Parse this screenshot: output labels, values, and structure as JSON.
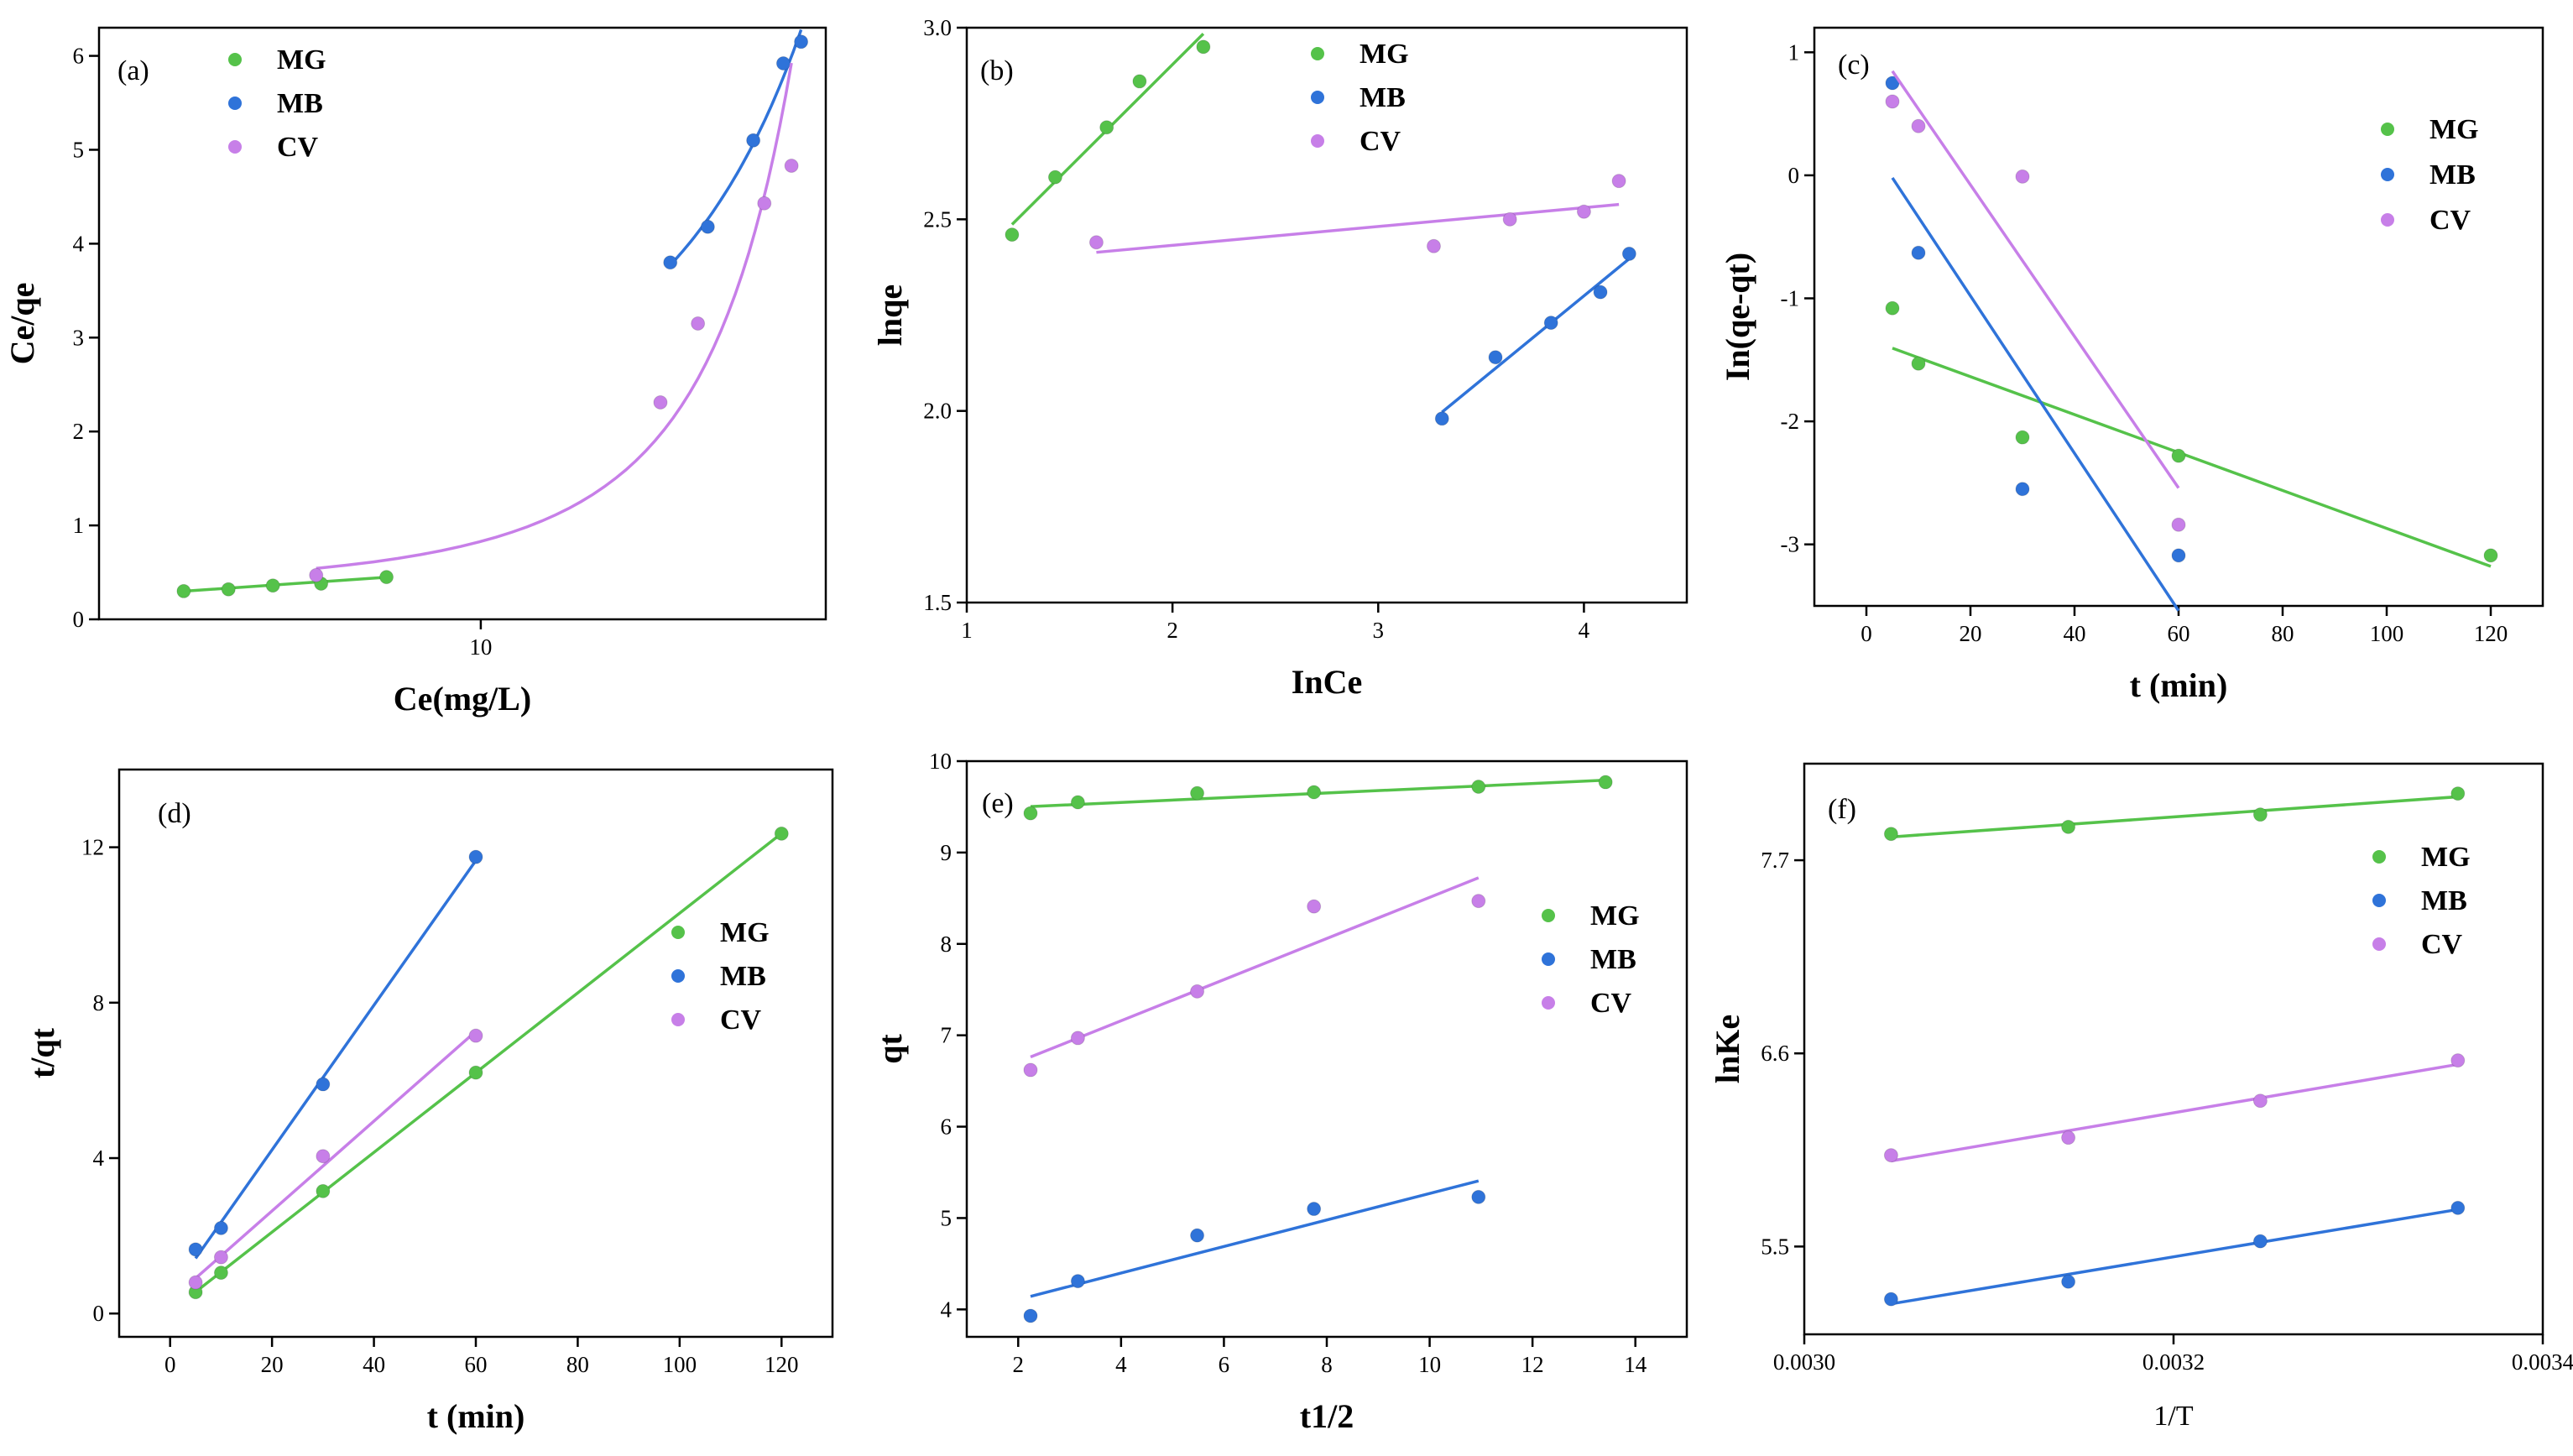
{
  "colors": {
    "MG": "#55c24a",
    "MB": "#2f73d9",
    "CV": "#c77fe8"
  },
  "chart_data": [
    {
      "id": "a",
      "type": "scatter",
      "tag": "(a)",
      "xlabel": "Ce(mg/L)",
      "ylabel": "Ce/qe",
      "xscale": "log",
      "xlim": [
        2.5,
        35
      ],
      "ylim": [
        0,
        6.3
      ],
      "xticks": [
        10
      ],
      "xtick_labels": [
        "10"
      ],
      "yticks": [
        0,
        1,
        2,
        3,
        4,
        5,
        6
      ],
      "ytick_labels": [
        "0",
        "1",
        "2",
        "3",
        "4",
        "5",
        "6"
      ],
      "legend": [
        "MG",
        "MB",
        "CV"
      ],
      "legend_position": "top-left",
      "series": [
        {
          "name": "MG",
          "x": [
            3.4,
            4.0,
            4.7,
            5.6,
            7.1
          ],
          "y": [
            0.3,
            0.32,
            0.36,
            0.38,
            0.45
          ],
          "fit": "linear"
        },
        {
          "name": "MB",
          "x": [
            19.9,
            22.8,
            26.9,
            30.0,
            32.0
          ],
          "y": [
            3.8,
            4.18,
            5.1,
            5.92,
            6.15
          ],
          "fit": "curve"
        },
        {
          "name": "CV",
          "x": [
            5.5,
            19.2,
            22.0,
            28.0,
            30.9
          ],
          "y": [
            0.47,
            2.31,
            3.15,
            4.43,
            4.83
          ],
          "fit": "curve"
        }
      ]
    },
    {
      "id": "b",
      "type": "scatter",
      "tag": "(b)",
      "xlabel": "InCe",
      "ylabel": "lnqe",
      "xlim": [
        1,
        4.5
      ],
      "ylim": [
        1.5,
        3.0
      ],
      "xticks": [
        1,
        2,
        3,
        4
      ],
      "xtick_labels": [
        "1",
        "2",
        "3",
        "4"
      ],
      "yticks": [
        1.5,
        2.0,
        2.5,
        3.0
      ],
      "ytick_labels": [
        "1.5",
        "2.0",
        "2.5",
        "3.0"
      ],
      "legend": [
        "MG",
        "MB",
        "CV"
      ],
      "legend_position": "top-right",
      "series": [
        {
          "name": "MG",
          "x": [
            1.22,
            1.43,
            1.68,
            1.84,
            2.15
          ],
          "y": [
            2.46,
            2.61,
            2.74,
            2.86,
            2.95
          ],
          "fit": "linear"
        },
        {
          "name": "MB",
          "x": [
            3.31,
            3.57,
            3.84,
            4.08,
            4.22
          ],
          "y": [
            1.98,
            2.14,
            2.23,
            2.31,
            2.41
          ],
          "fit": "linear"
        },
        {
          "name": "CV",
          "x": [
            1.63,
            3.27,
            3.64,
            4.0,
            4.17
          ],
          "y": [
            2.44,
            2.43,
            2.5,
            2.52,
            2.6
          ],
          "fit": "linear"
        }
      ]
    },
    {
      "id": "c",
      "type": "scatter",
      "tag": "(c)",
      "xlabel": "t (min)",
      "ylabel": "In(qe-qt)",
      "xlim": [
        -10,
        130
      ],
      "ylim": [
        -3.5,
        1.2
      ],
      "xticks": [
        0,
        20,
        40,
        60,
        80,
        100,
        120
      ],
      "xtick_labels": [
        "0",
        "20",
        "40",
        "60",
        "80",
        "100",
        "120"
      ],
      "yticks": [
        -3,
        -2,
        -1,
        0,
        1
      ],
      "ytick_labels": [
        "-3",
        "-2",
        "-1",
        "0",
        "1"
      ],
      "legend": [
        "MG",
        "MB",
        "CV"
      ],
      "legend_position": "top-right",
      "series": [
        {
          "name": "MG",
          "x": [
            5,
            10,
            30,
            60,
            120
          ],
          "y": [
            -1.08,
            -1.53,
            -2.13,
            -2.28,
            -3.09
          ],
          "fit": "linear",
          "fit_x": [
            5,
            120
          ]
        },
        {
          "name": "MB",
          "x": [
            5,
            10,
            30,
            60
          ],
          "y": [
            0.75,
            -0.63,
            -2.55,
            -3.09
          ],
          "fit": "linear",
          "fit_x": [
            5,
            60
          ]
        },
        {
          "name": "CV",
          "x": [
            5,
            10,
            30,
            60
          ],
          "y": [
            0.6,
            0.4,
            -0.01,
            -2.84
          ],
          "fit": "linear",
          "fit_x": [
            5,
            60
          ]
        }
      ]
    },
    {
      "id": "d",
      "type": "scatter",
      "tag": "(d)",
      "xlabel": "t (min)",
      "ylabel": "t/qt",
      "xlim": [
        -10,
        130
      ],
      "ylim": [
        -0.6,
        14
      ],
      "xticks": [
        0,
        20,
        40,
        60,
        80,
        100,
        120
      ],
      "xtick_labels": [
        "0",
        "20",
        "40",
        "60",
        "80",
        "100",
        "120"
      ],
      "yticks": [
        0,
        4,
        8,
        12
      ],
      "ytick_labels": [
        "0",
        "4",
        "8",
        "12"
      ],
      "legend": [
        "MG",
        "MB",
        "CV"
      ],
      "legend_position": "center-right",
      "series": [
        {
          "name": "MG",
          "x": [
            5,
            10,
            30,
            60,
            120
          ],
          "y": [
            0.55,
            1.05,
            3.15,
            6.2,
            12.35
          ],
          "fit": "linear"
        },
        {
          "name": "MB",
          "x": [
            5,
            10,
            30,
            60
          ],
          "y": [
            1.65,
            2.2,
            5.9,
            11.75
          ],
          "fit": "linear"
        },
        {
          "name": "CV",
          "x": [
            5,
            10,
            30,
            60
          ],
          "y": [
            0.8,
            1.45,
            4.05,
            7.15
          ],
          "fit": "linear"
        }
      ]
    },
    {
      "id": "e",
      "type": "scatter",
      "tag": "(e)",
      "xlabel": "t1/2",
      "ylabel": "qt",
      "xlim": [
        1,
        15
      ],
      "ylim": [
        3.7,
        10
      ],
      "xticks": [
        2,
        4,
        6,
        8,
        10,
        12,
        14
      ],
      "xtick_labels": [
        "2",
        "4",
        "6",
        "8",
        "10",
        "12",
        "14"
      ],
      "yticks": [
        4,
        5,
        6,
        7,
        8,
        9,
        10
      ],
      "ytick_labels": [
        "4",
        "5",
        "6",
        "7",
        "8",
        "9",
        "10"
      ],
      "legend": [
        "MG",
        "MB",
        "CV"
      ],
      "legend_position": "center-right",
      "series": [
        {
          "name": "MG",
          "x": [
            2.24,
            3.16,
            5.48,
            7.75,
            10.95,
            13.42
          ],
          "y": [
            9.43,
            9.55,
            9.65,
            9.66,
            9.72,
            9.77
          ],
          "fit": "linear"
        },
        {
          "name": "MB",
          "x": [
            2.24,
            3.16,
            5.48,
            7.75,
            10.95
          ],
          "y": [
            3.93,
            4.31,
            4.81,
            5.1,
            5.23
          ],
          "fit": "linear"
        },
        {
          "name": "CV",
          "x": [
            2.24,
            3.16,
            5.48,
            7.75,
            10.95
          ],
          "y": [
            6.62,
            6.97,
            7.48,
            8.41,
            8.47
          ],
          "fit": "linear"
        }
      ]
    },
    {
      "id": "f",
      "type": "scatter",
      "tag": "(f)",
      "xlabel": "1/T",
      "ylabel": "lnKe",
      "xlim": [
        0.003,
        0.0034
      ],
      "ylim": [
        5.0,
        8.25
      ],
      "xticks": [
        0.003,
        0.0032,
        0.0034
      ],
      "xtick_labels": [
        "0.0030",
        "0.0032",
        "0.0034"
      ],
      "yticks": [
        5.5,
        6.6,
        7.7
      ],
      "ytick_labels": [
        "5.5",
        "6.6",
        "7.7"
      ],
      "legend": [
        "MG",
        "MB",
        "CV"
      ],
      "legend_position": "top-right",
      "series": [
        {
          "name": "MG",
          "x": [
            0.003047,
            0.003143,
            0.003247,
            0.003354
          ],
          "y": [
            7.85,
            7.89,
            7.96,
            8.08
          ],
          "fit": "linear"
        },
        {
          "name": "MB",
          "x": [
            0.003047,
            0.003143,
            0.003247,
            0.003354
          ],
          "y": [
            5.2,
            5.3,
            5.53,
            5.72
          ],
          "fit": "linear"
        },
        {
          "name": "CV",
          "x": [
            0.003047,
            0.003143,
            0.003247,
            0.003354
          ],
          "y": [
            6.02,
            6.12,
            6.33,
            6.56
          ],
          "fit": "linear"
        }
      ]
    }
  ]
}
